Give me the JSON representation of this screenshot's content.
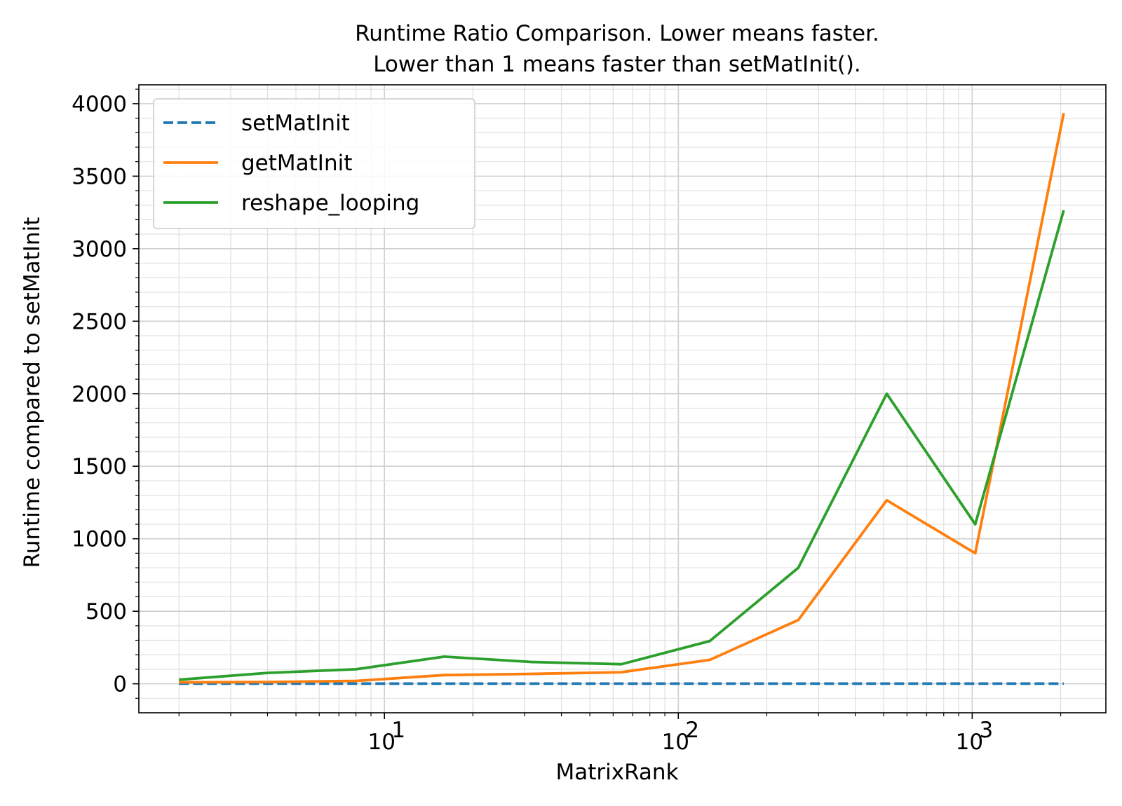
{
  "chart_data": {
    "type": "line",
    "title": "Runtime Ratio Comparison. Lower means faster.",
    "subtitle": "Lower than 1 means faster than setMatInit().",
    "xlabel": "MatrixRank",
    "ylabel": "Runtime compared to setMatInit",
    "xscale": "log",
    "xlim": [
      1.46,
      2850
    ],
    "ylim": [
      -200,
      4130
    ],
    "grid": true,
    "legend_position": "top-left",
    "x_tick_labels": [
      {
        "base": "10",
        "exp": "1",
        "value": 10
      },
      {
        "base": "10",
        "exp": "2",
        "value": 100
      },
      {
        "base": "10",
        "exp": "3",
        "value": 1000
      }
    ],
    "y_ticks": [
      0,
      500,
      1000,
      1500,
      2000,
      2500,
      3000,
      3500,
      4000
    ],
    "x": [
      2,
      4,
      8,
      16,
      32,
      64,
      128,
      256,
      512,
      1024,
      2048
    ],
    "series": [
      {
        "name": "setMatInit",
        "color": "#1f77b4",
        "style": "dashed",
        "values": [
          1,
          1,
          1,
          1,
          1,
          1,
          1,
          1,
          1,
          1,
          1
        ]
      },
      {
        "name": "getMatInit",
        "color": "#ff7f0e",
        "style": "solid",
        "values": [
          10,
          12,
          20,
          60,
          68,
          80,
          165,
          440,
          1265,
          900,
          3935
        ]
      },
      {
        "name": "reshape_looping",
        "color": "#2ca02c",
        "style": "solid",
        "values": [
          28,
          75,
          100,
          187,
          150,
          135,
          295,
          800,
          2000,
          1100,
          3265
        ]
      }
    ]
  }
}
